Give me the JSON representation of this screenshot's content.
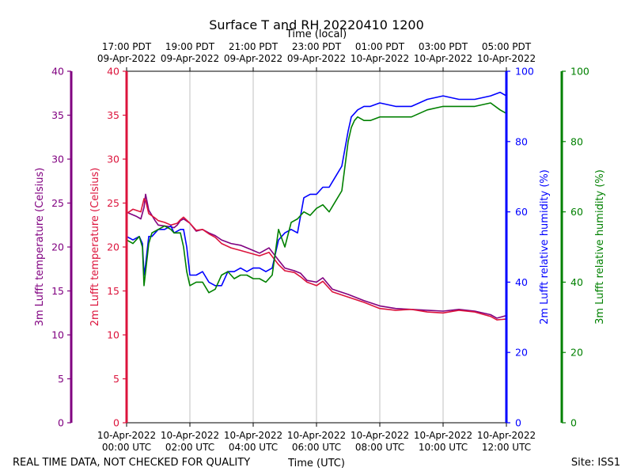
{
  "chart_data": {
    "type": "line",
    "title": "Surface T and RH 20220410 1200",
    "top_axis_label": "Time (local)",
    "xlabel": "Time (UTC)",
    "footer_left": "REAL TIME DATA, NOT CHECKED FOR QUALITY",
    "footer_right": "Site: ISS1",
    "x_range_hours": [
      0,
      12
    ],
    "bottom_ticks": [
      {
        "h": 0,
        "date": "10-Apr-2022",
        "time": "00:00 UTC"
      },
      {
        "h": 2,
        "date": "10-Apr-2022",
        "time": "02:00 UTC"
      },
      {
        "h": 4,
        "date": "10-Apr-2022",
        "time": "04:00 UTC"
      },
      {
        "h": 6,
        "date": "10-Apr-2022",
        "time": "06:00 UTC"
      },
      {
        "h": 8,
        "date": "10-Apr-2022",
        "time": "08:00 UTC"
      },
      {
        "h": 10,
        "date": "10-Apr-2022",
        "time": "10:00 UTC"
      },
      {
        "h": 12,
        "date": "10-Apr-2022",
        "time": "12:00 UTC"
      }
    ],
    "top_ticks": [
      {
        "h": 0,
        "time": "17:00 PDT",
        "date": "09-Apr-2022"
      },
      {
        "h": 2,
        "time": "19:00 PDT",
        "date": "09-Apr-2022"
      },
      {
        "h": 4,
        "time": "21:00 PDT",
        "date": "09-Apr-2022"
      },
      {
        "h": 6,
        "time": "23:00 PDT",
        "date": "09-Apr-2022"
      },
      {
        "h": 8,
        "time": "01:00 PDT",
        "date": "10-Apr-2022"
      },
      {
        "h": 10,
        "time": "03:00 PDT",
        "date": "10-Apr-2022"
      },
      {
        "h": 12,
        "time": "05:00 PDT",
        "date": "10-Apr-2022"
      }
    ],
    "axes": {
      "t3m": {
        "label": "3m Lufft temperature (Celsius)",
        "color": "#800080",
        "range": [
          0,
          40
        ],
        "ticks": [
          "0",
          "5",
          "10",
          "15",
          "20",
          "25",
          "30",
          "35",
          "40"
        ]
      },
      "t2m": {
        "label": "2m Lufft temperature (Celsius)",
        "color": "#dc143c",
        "range": [
          0,
          40
        ],
        "ticks": [
          "0",
          "5",
          "10",
          "15",
          "20",
          "25",
          "30",
          "35",
          "40"
        ]
      },
      "rh2m": {
        "label": "2m Lufft relative humidity (%)",
        "color": "#0000ff",
        "range": [
          0,
          100
        ],
        "ticks": [
          "0",
          "20",
          "40",
          "60",
          "80",
          "100"
        ]
      },
      "rh3m": {
        "label": "3m Lufft relative humidity (%)",
        "color": "#008000",
        "range": [
          0,
          100
        ],
        "ticks": [
          "0",
          "20",
          "40",
          "60",
          "80",
          "100"
        ]
      }
    },
    "series": [
      {
        "name": "3m Lufft temperature",
        "axis": "t3m",
        "color": "#800080",
        "x": [
          0,
          0.1,
          0.3,
          0.45,
          0.55,
          0.6,
          0.7,
          0.9,
          1.0,
          1.2,
          1.4,
          1.5,
          1.6,
          1.7,
          1.8,
          2.0,
          2.2,
          2.4,
          2.6,
          2.8,
          3.0,
          3.3,
          3.6,
          4.0,
          4.2,
          4.5,
          4.8,
          5.0,
          5.3,
          5.5,
          5.7,
          6.0,
          6.2,
          6.5,
          7.0,
          7.5,
          8.0,
          8.5,
          9.0,
          9.5,
          10.0,
          10.5,
          11.0,
          11.5,
          11.7,
          12.0
        ],
        "values": [
          24,
          23.8,
          23.5,
          23.2,
          24.5,
          26,
          24.2,
          23,
          22.5,
          22.4,
          22.3,
          22.2,
          22.5,
          23,
          23.2,
          22.7,
          21.8,
          22,
          21.6,
          21.3,
          20.8,
          20.4,
          20.2,
          19.6,
          19.3,
          19.9,
          18.5,
          17.6,
          17.3,
          17.0,
          16.2,
          16.0,
          16.5,
          15.2,
          14.6,
          13.9,
          13.3,
          13.0,
          12.9,
          12.8,
          12.7,
          12.9,
          12.7,
          12.3,
          11.9,
          12.2
        ]
      },
      {
        "name": "2m Lufft temperature",
        "axis": "t2m",
        "color": "#dc143c",
        "x": [
          0,
          0.2,
          0.45,
          0.55,
          0.6,
          0.7,
          0.9,
          1.0,
          1.2,
          1.4,
          1.6,
          1.7,
          1.8,
          2.0,
          2.2,
          2.4,
          2.6,
          2.8,
          3.0,
          3.3,
          3.6,
          4.0,
          4.2,
          4.5,
          4.8,
          5.0,
          5.3,
          5.5,
          5.7,
          6.0,
          6.2,
          6.5,
          7.0,
          7.5,
          8.0,
          8.5,
          9.0,
          9.5,
          10.0,
          10.5,
          11.0,
          11.5,
          11.7,
          12.0
        ],
        "values": [
          23.8,
          24.3,
          24.0,
          25.5,
          25.3,
          23.8,
          23.3,
          23.0,
          22.8,
          22.5,
          22.7,
          23.1,
          23.4,
          22.7,
          21.9,
          22.0,
          21.5,
          21.1,
          20.4,
          19.9,
          19.6,
          19.2,
          19.0,
          19.4,
          18.0,
          17.3,
          17.1,
          16.6,
          16.0,
          15.6,
          16.1,
          14.9,
          14.3,
          13.7,
          13.0,
          12.8,
          12.9,
          12.6,
          12.5,
          12.8,
          12.6,
          12.1,
          11.7,
          11.8
        ]
      },
      {
        "name": "2m Lufft relative humidity",
        "axis": "rh2m",
        "color": "#0000ff",
        "x": [
          0,
          0.2,
          0.4,
          0.5,
          0.55,
          0.6,
          0.7,
          0.8,
          1.0,
          1.2,
          1.4,
          1.5,
          1.7,
          1.8,
          1.9,
          2.0,
          2.2,
          2.4,
          2.6,
          2.8,
          3.0,
          3.2,
          3.4,
          3.6,
          3.8,
          4.0,
          4.2,
          4.4,
          4.6,
          4.8,
          5.0,
          5.2,
          5.4,
          5.6,
          5.8,
          6.0,
          6.2,
          6.4,
          6.6,
          6.8,
          7.0,
          7.1,
          7.2,
          7.3,
          7.5,
          7.7,
          8.0,
          8.5,
          9.0,
          9.5,
          10.0,
          10.5,
          11.0,
          11.5,
          11.8,
          12.0
        ],
        "values": [
          53,
          52,
          53,
          51,
          42,
          45,
          53,
          53,
          55,
          55,
          56,
          54,
          55,
          55,
          50,
          42,
          42,
          43,
          40,
          39,
          39,
          43,
          43,
          44,
          43,
          44,
          44,
          43,
          44,
          52,
          54,
          55,
          54,
          64,
          65,
          65,
          67,
          67,
          70,
          73,
          83,
          87,
          88,
          89,
          90,
          90,
          91,
          90,
          90,
          92,
          93,
          92,
          92,
          93,
          94,
          93
        ]
      },
      {
        "name": "3m Lufft relative humidity",
        "axis": "rh3m",
        "color": "#008000",
        "x": [
          0,
          0.2,
          0.4,
          0.5,
          0.55,
          0.6,
          0.7,
          0.8,
          1.0,
          1.2,
          1.4,
          1.5,
          1.7,
          1.8,
          1.9,
          2.0,
          2.2,
          2.4,
          2.6,
          2.8,
          3.0,
          3.2,
          3.4,
          3.6,
          3.8,
          4.0,
          4.2,
          4.4,
          4.6,
          4.8,
          5.0,
          5.2,
          5.4,
          5.6,
          5.8,
          6.0,
          6.2,
          6.4,
          6.6,
          6.8,
          7.0,
          7.1,
          7.2,
          7.3,
          7.5,
          7.7,
          8.0,
          8.5,
          9.0,
          9.5,
          10.0,
          10.5,
          11.0,
          11.5,
          11.8,
          12.0
        ],
        "values": [
          52,
          51,
          53,
          50,
          39,
          43,
          51,
          54,
          55,
          56,
          55,
          54,
          54,
          50,
          43,
          39,
          40,
          40,
          37,
          38,
          42,
          43,
          41,
          42,
          42,
          41,
          41,
          40,
          42,
          55,
          50,
          57,
          58,
          60,
          59,
          61,
          62,
          60,
          63,
          66,
          80,
          84,
          86,
          87,
          86,
          86,
          87,
          87,
          87,
          89,
          90,
          90,
          90,
          91,
          89,
          88
        ]
      }
    ]
  }
}
